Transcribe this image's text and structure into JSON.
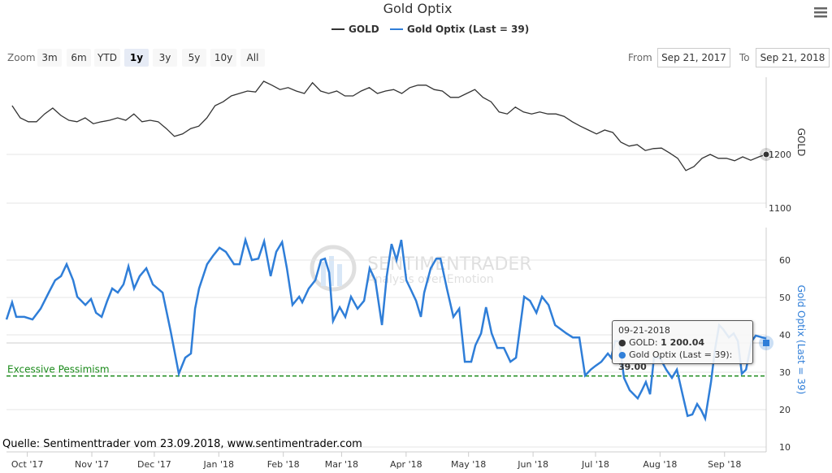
{
  "chart_data": {
    "type": "line",
    "title": "Gold Optix",
    "legend": [
      {
        "name": "GOLD",
        "color": "#333333"
      },
      {
        "name": "Gold Optix (Last = 39)",
        "color": "#2f7ed8"
      }
    ],
    "legend_placement": "top-center",
    "x_unit": "days since Sep 21, 2017",
    "x_ticks": [
      {
        "label": "Oct '17",
        "day": 10
      },
      {
        "label": "Nov '17",
        "day": 41
      },
      {
        "label": "Dec '17",
        "day": 71
      },
      {
        "label": "Jan '18",
        "day": 102
      },
      {
        "label": "Feb '18",
        "day": 133
      },
      {
        "label": "Mar '18",
        "day": 161
      },
      {
        "label": "Apr '18",
        "day": 192
      },
      {
        "label": "May '18",
        "day": 222
      },
      {
        "label": "Jun '18",
        "day": 253
      },
      {
        "label": "Jul '18",
        "day": 283
      },
      {
        "label": "Aug '18",
        "day": 314
      },
      {
        "label": "Sep '18",
        "day": 345
      }
    ],
    "gold": {
      "ylabel": "GOLD",
      "y_ticks": [
        1200,
        1100
      ],
      "start_day": 2.7,
      "step_days": 3.9,
      "values": [
        1300,
        1275,
        1267,
        1267,
        1283,
        1295,
        1280,
        1270,
        1267,
        1275,
        1263,
        1267,
        1270,
        1275,
        1270,
        1283,
        1267,
        1270,
        1267,
        1253,
        1237,
        1242,
        1253,
        1258,
        1275,
        1300,
        1308,
        1320,
        1325,
        1330,
        1328,
        1350,
        1342,
        1333,
        1337,
        1330,
        1325,
        1347,
        1330,
        1325,
        1330,
        1320,
        1320,
        1330,
        1337,
        1325,
        1330,
        1333,
        1325,
        1337,
        1342,
        1342,
        1333,
        1330,
        1317,
        1317,
        1325,
        1333,
        1317,
        1308,
        1287,
        1283,
        1297,
        1287,
        1283,
        1287,
        1283,
        1283,
        1278,
        1267,
        1258,
        1250,
        1242,
        1250,
        1245,
        1225,
        1217,
        1220,
        1208,
        1212,
        1213,
        1203,
        1192,
        1167,
        1175,
        1192,
        1200,
        1192,
        1192,
        1187,
        1195,
        1188,
        1195
      ],
      "last": {
        "day": 365,
        "value": 1200.04
      }
    },
    "optix": {
      "ylabel": "Gold Optix (Last = 39)",
      "y_ticks": [
        60,
        50,
        40,
        30,
        20,
        10
      ],
      "days": [
        0,
        2.7,
        4.7,
        8.6,
        12.5,
        16.4,
        20.3,
        23.4,
        26.2,
        28.9,
        32,
        34,
        37.9,
        40.6,
        43,
        45.7,
        48.4,
        50.8,
        53.5,
        56.2,
        58.6,
        61.3,
        64,
        67.2,
        70.3,
        75,
        78.9,
        82.8,
        85.9,
        88.6,
        90.6,
        92.5,
        96.4,
        99.2,
        102.3,
        105.4,
        109.3,
        112,
        114.8,
        117.9,
        121,
        123.8,
        126.9,
        129.6,
        132.4,
        134.7,
        137.4,
        140.6,
        142.1,
        145.2,
        148.4,
        151.1,
        153,
        155,
        156.9,
        160.1,
        162.8,
        165.5,
        168.7,
        171.8,
        174.5,
        177.2,
        180.4,
        182.7,
        185,
        187.4,
        189.7,
        192.1,
        194,
        196.8,
        199.1,
        200.7,
        203.8,
        206.5,
        208.5,
        211.6,
        214.7,
        217.5,
        220.2,
        223.3,
        225.3,
        228,
        230.4,
        233.1,
        235.8,
        239,
        242.1,
        244.8,
        248.7,
        251.5,
        254.6,
        257.3,
        260.4,
        263.6,
        266.3,
        269,
        272.1,
        275.2,
        278,
        280.7,
        283,
        285.8,
        288.9,
        290.5,
        292.4,
        294.4,
        296.7,
        299.4,
        303.3,
        305.3,
        307.2,
        309.2,
        311.1,
        313.9,
        317,
        319.7,
        322.1,
        324.8,
        327.2,
        329.5,
        331.8,
        333.8,
        335.7,
        338.5,
        340.4,
        342.4,
        344.3,
        347.1,
        349.4,
        351.4,
        353.3,
        355.3,
        358,
        360,
        365
      ],
      "values": [
        44.1,
        48.7,
        44.8,
        44.8,
        44.1,
        47,
        51.3,
        54.6,
        55.7,
        58.9,
        54.6,
        50.2,
        48,
        49.6,
        45.9,
        44.8,
        49.1,
        52.4,
        51.3,
        53.5,
        58.3,
        52.4,
        55.7,
        57.8,
        53.5,
        51.3,
        40.9,
        29.6,
        33.9,
        35,
        47,
        52.4,
        58.9,
        61.1,
        63.3,
        62.2,
        58.9,
        58.9,
        65.4,
        60,
        60.4,
        65,
        55.7,
        62.2,
        64.8,
        57.8,
        48,
        50.2,
        48.7,
        52.4,
        54.6,
        60,
        60.4,
        56.7,
        43.7,
        47.4,
        44.8,
        50.2,
        47,
        49.1,
        57.8,
        54.6,
        42.6,
        55.7,
        64.3,
        60,
        65.4,
        54.6,
        52.4,
        49.1,
        44.8,
        51.3,
        57.8,
        60.4,
        60.4,
        52.4,
        44.8,
        47,
        32.8,
        32.8,
        37.2,
        40.4,
        47.4,
        40.4,
        36.5,
        36.5,
        32.8,
        33.9,
        50.2,
        49.1,
        45.9,
        50.2,
        48,
        42.6,
        41.5,
        40.4,
        39.3,
        39.3,
        29.1,
        30.7,
        31.7,
        32.8,
        35,
        33.9,
        38.3,
        38.3,
        28.5,
        25.2,
        23,
        25.2,
        27.4,
        24.1,
        33.9,
        33.9,
        30.7,
        28.5,
        30.7,
        24.1,
        18.3,
        18.7,
        21.5,
        19.8,
        17.6,
        27.4,
        36.1,
        42.6,
        41.5,
        39.3,
        40.4,
        38.3,
        29.6,
        30.7,
        38.3,
        39.8,
        39
      ],
      "threshold": {
        "value": 29,
        "label": "Excessive Pessimism",
        "color": "#1a8a1a"
      }
    },
    "tooltip": {
      "date": "09-21-2018",
      "gold_label": "GOLD:",
      "gold_value": "1 200.04",
      "optix_label": "Gold Optix (Last = 39):",
      "optix_value": "39.00"
    }
  },
  "toolbar": {
    "zoom_label": "Zoom",
    "buttons": [
      "3m",
      "6m",
      "YTD",
      "1y",
      "3y",
      "5y",
      "10y",
      "All"
    ],
    "selected": "1y",
    "from_label": "From",
    "from_value": "Sep 21, 2017",
    "to_label": "To",
    "to_value": "Sep 21, 2018"
  },
  "watermark": {
    "name": "SENTIMENTRADER",
    "tagline": "Analysis over Emotion"
  },
  "source": "Quelle: Sentimenttrader vom 23.09.2018, www.sentimentrader.com"
}
